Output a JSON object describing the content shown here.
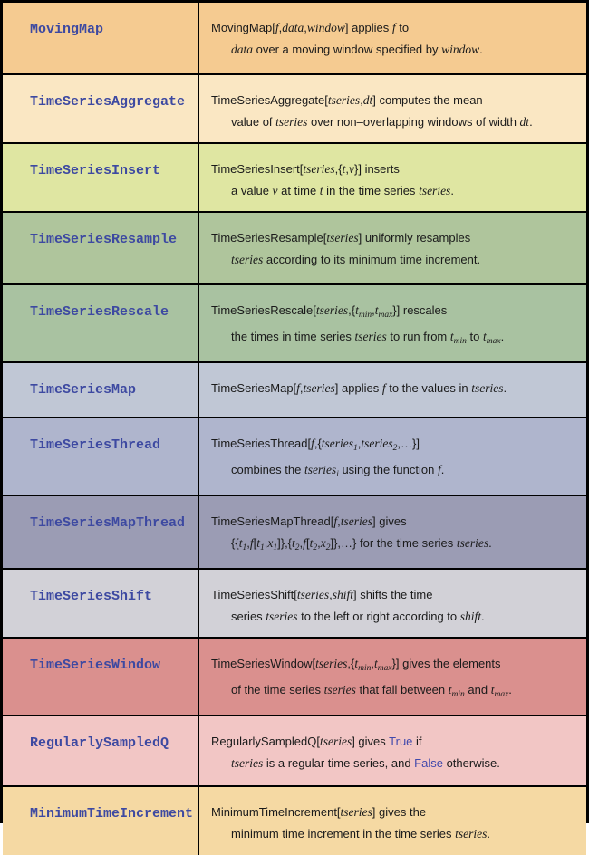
{
  "table": {
    "name_color": "#3D49A1",
    "text_color": "#1A1A1A",
    "keyword_color": "#4149AC",
    "border_color": "#000000",
    "rows": [
      {
        "name": "MovingMap",
        "color": "#F5CB91",
        "lines": [
          [
            {
              "t": "MovingMap[",
              "s": "p"
            },
            {
              "t": "f",
              "s": "i"
            },
            {
              "t": ",",
              "s": "p"
            },
            {
              "t": "data",
              "s": "i"
            },
            {
              "t": ",",
              "s": "p"
            },
            {
              "t": "window",
              "s": "i"
            },
            {
              "t": "] applies ",
              "s": "p"
            },
            {
              "t": "f",
              "s": "i"
            },
            {
              "t": " to",
              "s": "p"
            }
          ],
          [
            {
              "t": "data",
              "s": "i"
            },
            {
              "t": " over a moving window specified by ",
              "s": "p"
            },
            {
              "t": "window",
              "s": "i"
            },
            {
              "t": ".",
              "s": "p"
            }
          ]
        ]
      },
      {
        "name": "TimeSeriesAggregate",
        "color": "#FAE7C3",
        "lines": [
          [
            {
              "t": "TimeSeriesAggregate[",
              "s": "p"
            },
            {
              "t": "tseries",
              "s": "i"
            },
            {
              "t": ",",
              "s": "p"
            },
            {
              "t": "dt",
              "s": "i"
            },
            {
              "t": "] computes the mean",
              "s": "p"
            }
          ],
          [
            {
              "t": "value of ",
              "s": "p"
            },
            {
              "t": "tseries",
              "s": "i"
            },
            {
              "t": " over non–overlapping windows of width ",
              "s": "p"
            },
            {
              "t": "dt",
              "s": "i"
            },
            {
              "t": ".",
              "s": "p"
            }
          ]
        ]
      },
      {
        "name": "TimeSeriesInsert",
        "color": "#DFE6A2",
        "lines": [
          [
            {
              "t": "TimeSeriesInsert[",
              "s": "p"
            },
            {
              "t": "tseries",
              "s": "i"
            },
            {
              "t": ",{",
              "s": "p"
            },
            {
              "t": "t",
              "s": "i"
            },
            {
              "t": ",",
              "s": "p"
            },
            {
              "t": "v",
              "s": "i"
            },
            {
              "t": "}] inserts",
              "s": "p"
            }
          ],
          [
            {
              "t": "a value ",
              "s": "p"
            },
            {
              "t": "v",
              "s": "i"
            },
            {
              "t": " at time ",
              "s": "p"
            },
            {
              "t": "t",
              "s": "i"
            },
            {
              "t": " in the time series ",
              "s": "p"
            },
            {
              "t": "tseries",
              "s": "i"
            },
            {
              "t": ".",
              "s": "p"
            }
          ]
        ]
      },
      {
        "name": "TimeSeriesResample",
        "color": "#AFC59C",
        "lines": [
          [
            {
              "t": "TimeSeriesResample[",
              "s": "p"
            },
            {
              "t": "tseries",
              "s": "i"
            },
            {
              "t": "] uniformly resamples",
              "s": "p"
            }
          ],
          [
            {
              "t": "tseries",
              "s": "i"
            },
            {
              "t": " according to its minimum time increment.",
              "s": "p"
            }
          ]
        ]
      },
      {
        "name": "TimeSeriesRescale",
        "color": "#A9C2A1",
        "lines": [
          [
            {
              "t": "TimeSeriesRescale[",
              "s": "p"
            },
            {
              "t": "tseries",
              "s": "i"
            },
            {
              "t": ",{",
              "s": "p"
            },
            {
              "t": "t",
              "s": "i"
            },
            {
              "t": "min",
              "s": "s"
            },
            {
              "t": ",",
              "s": "p"
            },
            {
              "t": "t",
              "s": "i"
            },
            {
              "t": "max",
              "s": "s"
            },
            {
              "t": "}] rescales",
              "s": "p"
            }
          ],
          [
            {
              "t": "the times in time series ",
              "s": "p"
            },
            {
              "t": "tseries",
              "s": "i"
            },
            {
              "t": " to run from ",
              "s": "p"
            },
            {
              "t": "t",
              "s": "i"
            },
            {
              "t": "min",
              "s": "s"
            },
            {
              "t": " to ",
              "s": "p"
            },
            {
              "t": "t",
              "s": "i"
            },
            {
              "t": "max",
              "s": "s"
            },
            {
              "t": ".",
              "s": "p"
            }
          ]
        ]
      },
      {
        "name": "TimeSeriesMap",
        "color": "#C0C7D5",
        "lines": [
          [
            {
              "t": "TimeSeriesMap[",
              "s": "p"
            },
            {
              "t": "f",
              "s": "i"
            },
            {
              "t": ",",
              "s": "p"
            },
            {
              "t": "tseries",
              "s": "i"
            },
            {
              "t": "] applies ",
              "s": "p"
            },
            {
              "t": "f",
              "s": "i"
            },
            {
              "t": " to the values in ",
              "s": "p"
            },
            {
              "t": "tseries",
              "s": "i"
            },
            {
              "t": ".",
              "s": "p"
            }
          ]
        ]
      },
      {
        "name": "TimeSeriesThread",
        "color": "#AFB5CD",
        "lines": [
          [
            {
              "t": "TimeSeriesThread[",
              "s": "p"
            },
            {
              "t": "f",
              "s": "i"
            },
            {
              "t": ",{",
              "s": "p"
            },
            {
              "t": "tseries",
              "s": "i"
            },
            {
              "t": "1",
              "s": "s"
            },
            {
              "t": ",",
              "s": "p"
            },
            {
              "t": "tseries",
              "s": "i"
            },
            {
              "t": "2",
              "s": "s"
            },
            {
              "t": ",…}]",
              "s": "p"
            }
          ],
          [
            {
              "t": "combines the ",
              "s": "p"
            },
            {
              "t": "tseries",
              "s": "i"
            },
            {
              "t": "i",
              "s": "s"
            },
            {
              "t": " using the function ",
              "s": "p"
            },
            {
              "t": "f",
              "s": "i"
            },
            {
              "t": ".",
              "s": "p"
            }
          ]
        ]
      },
      {
        "name": "TimeSeriesMapThread",
        "color": "#9B9CB4",
        "lines": [
          [
            {
              "t": "TimeSeriesMapThread[",
              "s": "p"
            },
            {
              "t": "f",
              "s": "i"
            },
            {
              "t": ",",
              "s": "p"
            },
            {
              "t": "tseries",
              "s": "i"
            },
            {
              "t": "] gives",
              "s": "p"
            }
          ],
          [
            {
              "t": "{{",
              "s": "p"
            },
            {
              "t": "t",
              "s": "i"
            },
            {
              "t": "1",
              "s": "s"
            },
            {
              "t": ",",
              "s": "p"
            },
            {
              "t": "f",
              "s": "i"
            },
            {
              "t": "[",
              "s": "p"
            },
            {
              "t": "t",
              "s": "i"
            },
            {
              "t": "1",
              "s": "s"
            },
            {
              "t": ",",
              "s": "p"
            },
            {
              "t": "x",
              "s": "i"
            },
            {
              "t": "1",
              "s": "s"
            },
            {
              "t": "]},{",
              "s": "p"
            },
            {
              "t": "t",
              "s": "i"
            },
            {
              "t": "2",
              "s": "s"
            },
            {
              "t": ",",
              "s": "p"
            },
            {
              "t": "f",
              "s": "i"
            },
            {
              "t": "[",
              "s": "p"
            },
            {
              "t": "t",
              "s": "i"
            },
            {
              "t": "2",
              "s": "s"
            },
            {
              "t": ",",
              "s": "p"
            },
            {
              "t": "x",
              "s": "i"
            },
            {
              "t": "2",
              "s": "s"
            },
            {
              "t": "]},…} for the time series ",
              "s": "p"
            },
            {
              "t": "tseries",
              "s": "i"
            },
            {
              "t": ".",
              "s": "p"
            }
          ]
        ]
      },
      {
        "name": "TimeSeriesShift",
        "color": "#D2D1D7",
        "lines": [
          [
            {
              "t": "TimeSeriesShift[",
              "s": "p"
            },
            {
              "t": "tseries",
              "s": "i"
            },
            {
              "t": ",",
              "s": "p"
            },
            {
              "t": "shift",
              "s": "i"
            },
            {
              "t": "] shifts the time",
              "s": "p"
            }
          ],
          [
            {
              "t": "series ",
              "s": "p"
            },
            {
              "t": "tseries",
              "s": "i"
            },
            {
              "t": " to the left or right according to ",
              "s": "p"
            },
            {
              "t": "shift",
              "s": "i"
            },
            {
              "t": ".",
              "s": "p"
            }
          ]
        ]
      },
      {
        "name": "TimeSeriesWindow",
        "color": "#DA908E",
        "lines": [
          [
            {
              "t": "TimeSeriesWindow[",
              "s": "p"
            },
            {
              "t": "tseries",
              "s": "i"
            },
            {
              "t": ",{",
              "s": "p"
            },
            {
              "t": "t",
              "s": "i"
            },
            {
              "t": "min",
              "s": "s"
            },
            {
              "t": ",",
              "s": "p"
            },
            {
              "t": "t",
              "s": "i"
            },
            {
              "t": "max",
              "s": "s"
            },
            {
              "t": "}] gives the elements",
              "s": "p"
            }
          ],
          [
            {
              "t": "of the time series ",
              "s": "p"
            },
            {
              "t": "tseries",
              "s": "i"
            },
            {
              "t": " that fall between ",
              "s": "p"
            },
            {
              "t": "t",
              "s": "i"
            },
            {
              "t": "min",
              "s": "s"
            },
            {
              "t": " and ",
              "s": "p"
            },
            {
              "t": "t",
              "s": "i"
            },
            {
              "t": "max",
              "s": "s"
            },
            {
              "t": ".",
              "s": "p"
            }
          ]
        ]
      },
      {
        "name": "RegularlySampledQ",
        "color": "#F2C6C5",
        "lines": [
          [
            {
              "t": "RegularlySampledQ[",
              "s": "p"
            },
            {
              "t": "tseries",
              "s": "i"
            },
            {
              "t": "] gives ",
              "s": "p"
            },
            {
              "t": "True",
              "s": "k"
            },
            {
              "t": " if",
              "s": "p"
            }
          ],
          [
            {
              "t": "tseries",
              "s": "i"
            },
            {
              "t": " is a regular time series, and ",
              "s": "p"
            },
            {
              "t": "False",
              "s": "k"
            },
            {
              "t": " otherwise.",
              "s": "p"
            }
          ]
        ]
      },
      {
        "name": "MinimumTimeIncrement",
        "color": "#F5D9A3",
        "lines": [
          [
            {
              "t": "MinimumTimeIncrement[",
              "s": "p"
            },
            {
              "t": "tseries",
              "s": "i"
            },
            {
              "t": "] gives the",
              "s": "p"
            }
          ],
          [
            {
              "t": "minimum time increment in the time series ",
              "s": "p"
            },
            {
              "t": "tseries",
              "s": "i"
            },
            {
              "t": ".",
              "s": "p"
            }
          ]
        ]
      }
    ]
  }
}
